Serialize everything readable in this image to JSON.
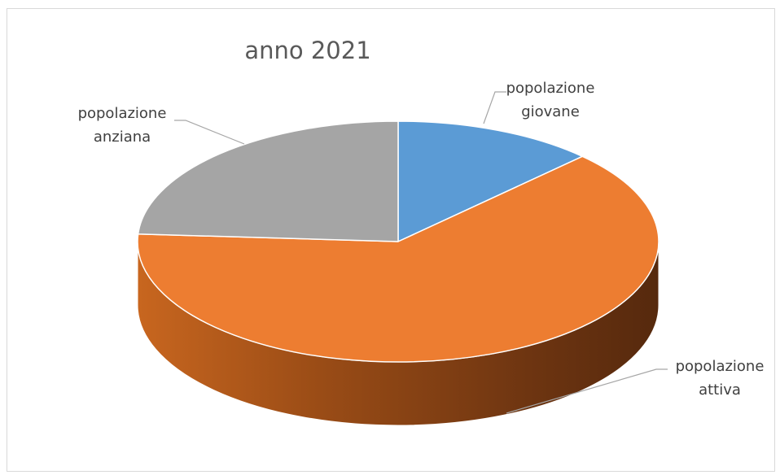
{
  "chart_data": {
    "type": "pie",
    "title": "anno 2021",
    "categories": [
      "popolazione giovane",
      "popolazione attiva",
      "popolazione anziana"
    ],
    "label_lines": [
      [
        "popolazione",
        "giovane"
      ],
      [
        "popolazione",
        "attiva"
      ],
      [
        "popolazione",
        "anziana"
      ]
    ],
    "values": [
      12.5,
      63.5,
      24.0
    ],
    "colors": [
      "#5b9bd5",
      "#ed7d31",
      "#a5a5a5"
    ],
    "legend": "none",
    "style": "3d-pie"
  }
}
